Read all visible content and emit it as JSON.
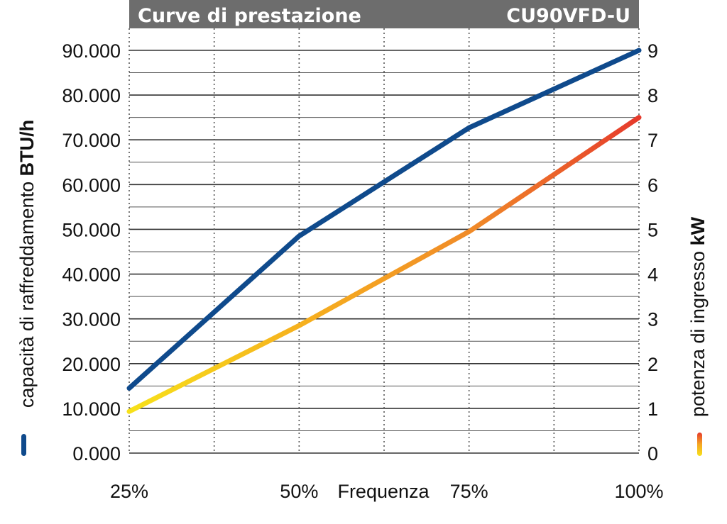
{
  "chart_data": {
    "type": "line",
    "title": "Curve di prestazione",
    "model": "CU90VFD-U",
    "xlabel": "Frequenza",
    "categories": [
      "25%",
      "50%",
      "75%",
      "100%"
    ],
    "x_ticks": [
      "25%",
      "50%",
      "75%",
      "100%"
    ],
    "y_left": {
      "label_prefix": "capacità di raffreddamento ",
      "label_unit": "BTU/h",
      "ticks": [
        "0.000",
        "10.000",
        "20.000",
        "30.000",
        "40.000",
        "50.000",
        "60.000",
        "70.000",
        "80.000",
        "90.000"
      ],
      "ylim": [
        0,
        90000
      ]
    },
    "y_right": {
      "label_prefix": "potenza di ingresso ",
      "label_unit": "kW",
      "ticks": [
        "0",
        "1",
        "2",
        "3",
        "4",
        "5",
        "6",
        "7",
        "8",
        "9"
      ],
      "ylim": [
        0,
        9
      ]
    },
    "series": [
      {
        "axis": "left",
        "color": "#0f4a8c",
        "values": [
          14500,
          48500,
          72700,
          90000
        ]
      },
      {
        "axis": "right",
        "colors": [
          "#f7e11a",
          "#f5a623",
          "#f08a28",
          "#e63a2c"
        ],
        "values": [
          0.93,
          2.85,
          4.95,
          7.5
        ]
      }
    ],
    "grid": true
  },
  "colors": {
    "header_bg": "#6d6d6d",
    "blue": "#0f4a8c",
    "grid": "#333333"
  }
}
